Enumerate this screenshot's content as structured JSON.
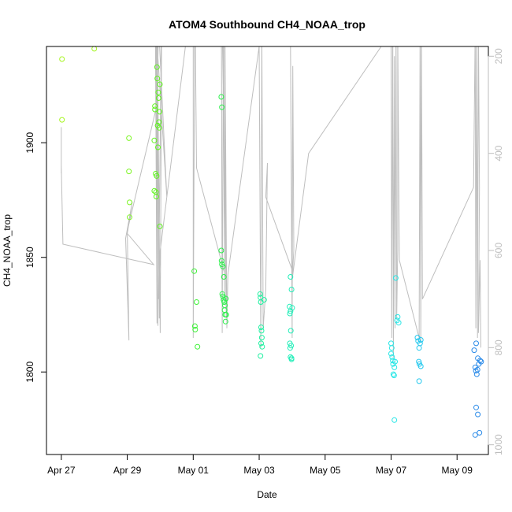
{
  "chart_data": {
    "type": "scatter",
    "title": "ATOM4 Southbound CH4_NOAA_trop",
    "xlabel": "Date",
    "ylabel": "CH4_NOAA_trop",
    "x_unit": "days since Apr 27",
    "x_ticks": [
      {
        "value": 0,
        "label": "Apr 27"
      },
      {
        "value": 2,
        "label": "Apr 29"
      },
      {
        "value": 4,
        "label": "May 01"
      },
      {
        "value": 6,
        "label": "May 03"
      },
      {
        "value": 8,
        "label": "May 05"
      },
      {
        "value": 10,
        "label": "May 07"
      },
      {
        "value": 12,
        "label": "May 09"
      }
    ],
    "xlim": [
      -0.45,
      12.95
    ],
    "ylim": [
      1764,
      1942
    ],
    "y_ticks": [
      1800,
      1850,
      1900
    ],
    "right_axis": {
      "ticks": [
        200,
        400,
        600,
        800,
        1000
      ],
      "reversed": true,
      "lim": [
        180,
        1020
      ],
      "color": "#bebebe"
    },
    "series": [
      {
        "name": "CH4_NOAA_trop",
        "marker": "open-circle",
        "points": [
          {
            "x": 0.02,
            "y": 1936.5,
            "color": "#a7f520"
          },
          {
            "x": 0.02,
            "y": 1910.0,
            "color": "#a7f520"
          },
          {
            "x": 1.0,
            "y": 1941.0,
            "color": "#a5f522"
          },
          {
            "x": 2.05,
            "y": 1902.0,
            "color": "#7df524"
          },
          {
            "x": 2.05,
            "y": 1887.5,
            "color": "#7df524"
          },
          {
            "x": 2.07,
            "y": 1874.0,
            "color": "#7df524"
          },
          {
            "x": 2.07,
            "y": 1867.5,
            "color": "#7df524"
          },
          {
            "x": 2.82,
            "y": 1879.0,
            "color": "#5ef51c"
          },
          {
            "x": 2.82,
            "y": 1901.0,
            "color": "#5ef51c"
          },
          {
            "x": 2.84,
            "y": 1916.0,
            "color": "#5ef51c"
          },
          {
            "x": 2.84,
            "y": 1914.5,
            "color": "#5ef51c"
          },
          {
            "x": 2.86,
            "y": 1886.5,
            "color": "#5ef51c"
          },
          {
            "x": 2.87,
            "y": 1878.5,
            "color": "#5ef51c"
          },
          {
            "x": 2.88,
            "y": 1876.5,
            "color": "#5ef51c"
          },
          {
            "x": 2.89,
            "y": 1885.5,
            "color": "#5ef51c"
          },
          {
            "x": 2.9,
            "y": 1933.0,
            "color": "#5ef51c"
          },
          {
            "x": 2.91,
            "y": 1928.0,
            "color": "#5ef51c"
          },
          {
            "x": 2.92,
            "y": 1907.5,
            "color": "#5ef51c"
          },
          {
            "x": 2.93,
            "y": 1898.0,
            "color": "#5ef51c"
          },
          {
            "x": 2.94,
            "y": 1922.0,
            "color": "#5ef51c"
          },
          {
            "x": 2.95,
            "y": 1919.5,
            "color": "#5ef51c"
          },
          {
            "x": 2.96,
            "y": 1909.0,
            "color": "#5ef51c"
          },
          {
            "x": 2.97,
            "y": 1906.5,
            "color": "#5ef51c"
          },
          {
            "x": 2.98,
            "y": 1913.5,
            "color": "#5ef51c"
          },
          {
            "x": 2.99,
            "y": 1925.5,
            "color": "#5ef51c"
          },
          {
            "x": 2.99,
            "y": 1863.5,
            "color": "#5ef51c"
          },
          {
            "x": 4.03,
            "y": 1844.0,
            "color": "#3cf236"
          },
          {
            "x": 4.05,
            "y": 1820.0,
            "color": "#3cf236"
          },
          {
            "x": 4.06,
            "y": 1818.5,
            "color": "#3cf236"
          },
          {
            "x": 4.1,
            "y": 1830.5,
            "color": "#3cf236"
          },
          {
            "x": 4.13,
            "y": 1811.0,
            "color": "#3cf236"
          },
          {
            "x": 4.85,
            "y": 1920.0,
            "color": "#2af04a"
          },
          {
            "x": 4.87,
            "y": 1915.5,
            "color": "#2af04a"
          },
          {
            "x": 4.85,
            "y": 1853.0,
            "color": "#2af04a"
          },
          {
            "x": 4.86,
            "y": 1848.5,
            "color": "#2af04a"
          },
          {
            "x": 4.87,
            "y": 1847.0,
            "color": "#2af04a"
          },
          {
            "x": 4.88,
            "y": 1834.0,
            "color": "#2af04a"
          },
          {
            "x": 4.9,
            "y": 1833.0,
            "color": "#2af04a"
          },
          {
            "x": 4.9,
            "y": 1846.0,
            "color": "#2af04a"
          },
          {
            "x": 4.92,
            "y": 1831.5,
            "color": "#2af04a"
          },
          {
            "x": 4.93,
            "y": 1841.5,
            "color": "#2af04a"
          },
          {
            "x": 4.94,
            "y": 1830.5,
            "color": "#2af04a"
          },
          {
            "x": 4.95,
            "y": 1827.0,
            "color": "#2af04a"
          },
          {
            "x": 4.96,
            "y": 1829.0,
            "color": "#2af04a"
          },
          {
            "x": 4.97,
            "y": 1825.0,
            "color": "#2af04a"
          },
          {
            "x": 4.98,
            "y": 1822.0,
            "color": "#2af04a"
          },
          {
            "x": 4.99,
            "y": 1832.0,
            "color": "#2af04a"
          },
          {
            "x": 5.0,
            "y": 1825.0,
            "color": "#2af04a"
          },
          {
            "x": 6.03,
            "y": 1834.0,
            "color": "#1ff0a0"
          },
          {
            "x": 6.04,
            "y": 1832.5,
            "color": "#1ff0a0"
          },
          {
            "x": 6.05,
            "y": 1830.5,
            "color": "#1ff0a0"
          },
          {
            "x": 6.06,
            "y": 1819.5,
            "color": "#1ff0a0"
          },
          {
            "x": 6.06,
            "y": 1812.5,
            "color": "#1ff0a0"
          },
          {
            "x": 6.07,
            "y": 1818.0,
            "color": "#1ff0a0"
          },
          {
            "x": 6.08,
            "y": 1815.0,
            "color": "#1ff0a0"
          },
          {
            "x": 6.09,
            "y": 1811.0,
            "color": "#1ff0a0"
          },
          {
            "x": 6.04,
            "y": 1807.0,
            "color": "#1ff0a0"
          },
          {
            "x": 6.15,
            "y": 1831.5,
            "color": "#1ff0a0"
          },
          {
            "x": 6.95,
            "y": 1841.5,
            "color": "#20eeb8"
          },
          {
            "x": 6.92,
            "y": 1828.5,
            "color": "#20eeb8"
          },
          {
            "x": 6.95,
            "y": 1826.5,
            "color": "#20eeb8"
          },
          {
            "x": 6.93,
            "y": 1825.5,
            "color": "#20eeb8"
          },
          {
            "x": 6.98,
            "y": 1836.0,
            "color": "#20eeb8"
          },
          {
            "x": 7.0,
            "y": 1828.0,
            "color": "#20eeb8"
          },
          {
            "x": 6.96,
            "y": 1818.0,
            "color": "#20eeb8"
          },
          {
            "x": 6.93,
            "y": 1812.5,
            "color": "#20eeb8"
          },
          {
            "x": 6.94,
            "y": 1810.5,
            "color": "#20eeb8"
          },
          {
            "x": 6.95,
            "y": 1806.5,
            "color": "#20eeb8"
          },
          {
            "x": 6.98,
            "y": 1805.5,
            "color": "#20eeb8"
          },
          {
            "x": 6.98,
            "y": 1806.0,
            "color": "#20eeb8"
          },
          {
            "x": 6.97,
            "y": 1811.5,
            "color": "#20eeb8"
          },
          {
            "x": 10.0,
            "y": 1812.5,
            "color": "#28e6e6"
          },
          {
            "x": 10.02,
            "y": 1810.5,
            "color": "#28e6e6"
          },
          {
            "x": 10.0,
            "y": 1808.0,
            "color": "#28e6e6"
          },
          {
            "x": 10.03,
            "y": 1806.5,
            "color": "#28e6e6"
          },
          {
            "x": 10.05,
            "y": 1805.0,
            "color": "#28e6e6"
          },
          {
            "x": 10.06,
            "y": 1803.5,
            "color": "#28e6e6"
          },
          {
            "x": 10.07,
            "y": 1799.0,
            "color": "#28e6e6"
          },
          {
            "x": 10.09,
            "y": 1798.5,
            "color": "#28e6e6"
          },
          {
            "x": 10.1,
            "y": 1802.0,
            "color": "#28e6e6"
          },
          {
            "x": 10.12,
            "y": 1804.5,
            "color": "#28e6e6"
          },
          {
            "x": 10.14,
            "y": 1841.0,
            "color": "#28e6e6"
          },
          {
            "x": 10.18,
            "y": 1822.5,
            "color": "#28e6e6"
          },
          {
            "x": 10.2,
            "y": 1824.0,
            "color": "#28e6e6"
          },
          {
            "x": 10.1,
            "y": 1779.0,
            "color": "#28e6e6"
          },
          {
            "x": 10.23,
            "y": 1821.5,
            "color": "#28e6e6"
          },
          {
            "x": 10.8,
            "y": 1815.0,
            "color": "#24c8ee"
          },
          {
            "x": 10.82,
            "y": 1813.5,
            "color": "#24c8ee"
          },
          {
            "x": 10.85,
            "y": 1810.5,
            "color": "#24c8ee"
          },
          {
            "x": 10.84,
            "y": 1804.5,
            "color": "#24c8ee"
          },
          {
            "x": 10.86,
            "y": 1803.5,
            "color": "#24c8ee"
          },
          {
            "x": 10.88,
            "y": 1812.5,
            "color": "#24c8ee"
          },
          {
            "x": 10.9,
            "y": 1814.0,
            "color": "#24c8ee"
          },
          {
            "x": 10.9,
            "y": 1802.5,
            "color": "#24c8ee"
          },
          {
            "x": 10.85,
            "y": 1796.0,
            "color": "#24c8ee"
          },
          {
            "x": 12.52,
            "y": 1809.5,
            "color": "#2a8ae8"
          },
          {
            "x": 12.58,
            "y": 1812.5,
            "color": "#2a8ae8"
          },
          {
            "x": 12.55,
            "y": 1802.0,
            "color": "#2a8ae8"
          },
          {
            "x": 12.57,
            "y": 1800.5,
            "color": "#2a8ae8"
          },
          {
            "x": 12.6,
            "y": 1799.0,
            "color": "#2a8ae8"
          },
          {
            "x": 12.62,
            "y": 1801.0,
            "color": "#2a8ae8"
          },
          {
            "x": 12.63,
            "y": 1806.0,
            "color": "#2a8ae8"
          },
          {
            "x": 12.66,
            "y": 1803.5,
            "color": "#2a8ae8"
          },
          {
            "x": 12.7,
            "y": 1805.0,
            "color": "#2a8ae8"
          },
          {
            "x": 12.73,
            "y": 1804.5,
            "color": "#2a8ae8"
          },
          {
            "x": 12.58,
            "y": 1784.5,
            "color": "#2a8ae8"
          },
          {
            "x": 12.63,
            "y": 1781.5,
            "color": "#2a8ae8"
          },
          {
            "x": 12.55,
            "y": 1772.5,
            "color": "#2a8ae8"
          },
          {
            "x": 12.68,
            "y": 1773.5,
            "color": "#2a8ae8"
          }
        ]
      },
      {
        "name": "flight track (right axis)",
        "type": "line",
        "color": "#bebebe",
        "axis": "right",
        "points": [
          [
            0,
            346
          ],
          [
            0,
            366
          ],
          [
            0,
            441
          ],
          [
            0,
            426
          ],
          [
            0.05,
            587
          ],
          [
            2.8,
            629
          ],
          [
            2.0,
            565
          ],
          [
            2.15,
            500
          ],
          [
            1.95,
            575
          ],
          [
            2.05,
            785
          ],
          [
            2.0,
            560
          ],
          [
            2.9,
            300
          ],
          [
            2.95,
            135
          ],
          [
            3.2,
            490
          ],
          [
            2.85,
            120
          ],
          [
            2.9,
            750
          ],
          [
            2.86,
            130
          ],
          [
            2.93,
            755
          ],
          [
            2.88,
            125
          ],
          [
            2.97,
            740
          ],
          [
            2.91,
            140
          ],
          [
            3.0,
            770
          ],
          [
            3.05,
            40
          ],
          [
            2.95,
            700
          ],
          [
            3.0,
            600
          ],
          [
            4.0,
            50
          ],
          [
            4.0,
            780
          ],
          [
            4.05,
            60
          ],
          [
            4.1,
            430
          ],
          [
            5.0,
            660
          ],
          [
            4.85,
            20
          ],
          [
            4.88,
            770
          ],
          [
            4.92,
            40
          ],
          [
            4.95,
            700
          ],
          [
            4.9,
            60
          ],
          [
            5.0,
            740
          ],
          [
            4.95,
            30
          ],
          [
            5.02,
            760
          ],
          [
            5.05,
            650
          ],
          [
            6.0,
            180
          ],
          [
            6.05,
            800
          ],
          [
            6.08,
            150
          ],
          [
            6.12,
            760
          ],
          [
            6.2,
            680
          ],
          [
            6.25,
            420
          ],
          [
            6.2,
            490
          ],
          [
            7.0,
            640
          ],
          [
            6.95,
            180
          ],
          [
            7.0,
            780
          ],
          [
            7.02,
            220
          ],
          [
            7.05,
            600
          ],
          [
            7.0,
            660
          ],
          [
            7.5,
            400
          ],
          [
            10.0,
            150
          ],
          [
            10.02,
            780
          ],
          [
            10.05,
            100
          ],
          [
            10.07,
            820
          ],
          [
            10.1,
            200
          ],
          [
            10.12,
            760
          ],
          [
            10.15,
            130
          ],
          [
            10.17,
            740
          ],
          [
            10.2,
            600
          ],
          [
            10.2,
            150
          ],
          [
            10.25,
            620
          ],
          [
            10.85,
            780
          ],
          [
            10.88,
            150
          ],
          [
            10.9,
            790
          ],
          [
            10.92,
            120
          ],
          [
            10.95,
            700
          ],
          [
            12.5,
            470
          ],
          [
            12.55,
            140
          ],
          [
            12.57,
            760
          ],
          [
            12.6,
            110
          ],
          [
            12.62,
            780
          ],
          [
            12.65,
            150
          ],
          [
            12.68,
            470
          ],
          [
            12.65,
            770
          ],
          [
            12.7,
            620
          ],
          [
            12.72,
            800
          ]
        ]
      }
    ]
  }
}
